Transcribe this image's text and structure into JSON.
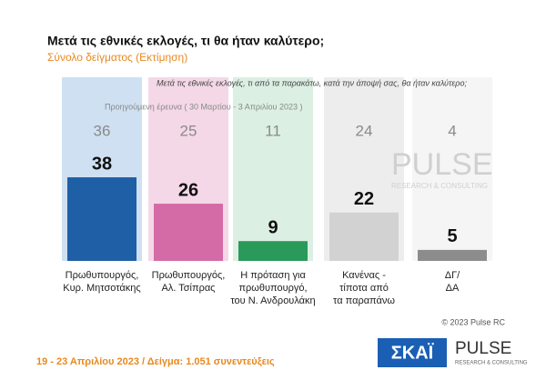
{
  "chart_data": {
    "type": "bar",
    "title": "Μετά τις εθνικές εκλογές, τι θα ήταν καλύτερο;",
    "subtitle": "Σύνολο δείγματος  (Εκτίμηση)",
    "question": "Μετά τις εθνικές εκλογές, τι από τα παρακάτω, κατά την άποψή σας, θα ήταν καλύτερο;",
    "previous_label": "Προηγούμενη έρευνα  ( 30 Μαρτίου - 3 Απριλίου 2023 )",
    "categories": [
      [
        "Πρωθυπουργός,",
        "Κυρ. Μητσοτάκης"
      ],
      [
        "Πρωθυπουργός,",
        "Αλ. Τσίπρας"
      ],
      [
        "Η πρόταση για",
        "πρωθυπουργό,",
        "του Ν. Ανδρουλάκη"
      ],
      [
        "Κανένας -",
        "τίποτα από",
        "τα παραπάνω"
      ],
      [
        "ΔΓ/",
        "ΔΑ"
      ]
    ],
    "values": [
      38,
      26,
      9,
      22,
      5
    ],
    "previous_values": [
      36,
      25,
      11,
      24,
      4
    ],
    "colors": [
      "#1f5fa6",
      "#d46aa6",
      "#2a9a5a",
      "#d2d2d2",
      "#8c8c8c"
    ],
    "panel_colors": [
      "#cfe0f2",
      "#f4d8e7",
      "#dcefe3",
      "#ededed",
      "#f5f5f5"
    ],
    "footer": "19 - 23  Απριλίου  2023  /  Δείγμα:  1.051 συνεντεύξεις",
    "copyright": "© 2023 Pulse RC",
    "logo_skai": "ΣΚΑΪ",
    "logo_pulse": "PULSE",
    "logo_pulse_sub": "RESEARCH & CONSULTING"
  }
}
